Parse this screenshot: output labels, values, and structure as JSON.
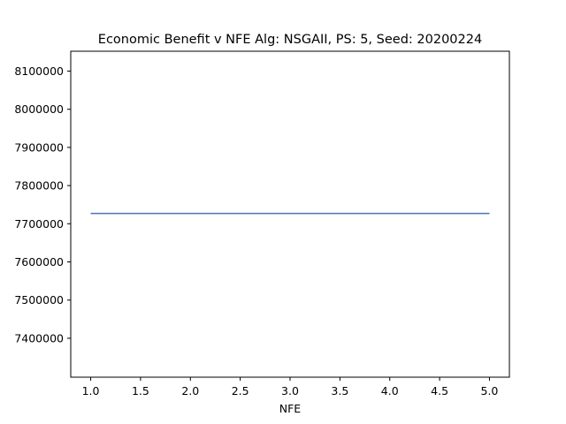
{
  "chart_data": {
    "type": "line",
    "title": "Economic Benefit v NFE Alg: NSGAII, PS: 5, Seed: 20200224",
    "xlabel": "NFE",
    "ylabel": "",
    "xlim": [
      0.8,
      5.2
    ],
    "ylim": [
      7298000,
      8152000
    ],
    "x_ticks": [
      1.0,
      1.5,
      2.0,
      2.5,
      3.0,
      3.5,
      4.0,
      4.5,
      5.0
    ],
    "x_tick_labels": [
      "1.0",
      "1.5",
      "2.0",
      "2.5",
      "3.0",
      "3.5",
      "4.0",
      "4.5",
      "5.0"
    ],
    "y_ticks": [
      7400000,
      7500000,
      7600000,
      7700000,
      7800000,
      7900000,
      8000000,
      8100000
    ],
    "y_tick_labels": [
      "7400000",
      "7500000",
      "7600000",
      "7700000",
      "7800000",
      "7900000",
      "8000000",
      "8100000"
    ],
    "grid": false,
    "series": [
      {
        "x": [
          1,
          2,
          3,
          4,
          5
        ],
        "values": [
          7727000,
          7727000,
          7727000,
          7727000,
          7727000
        ],
        "color": "#4c72b0"
      }
    ]
  }
}
